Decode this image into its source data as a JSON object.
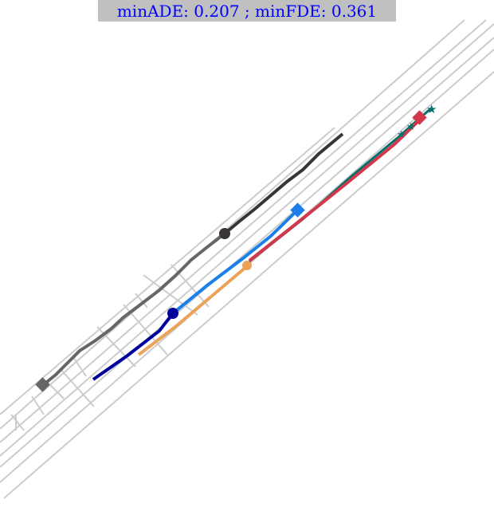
{
  "title": {
    "label_ade": "minADE",
    "value_ade": "0.207",
    "label_fde": "minFDE",
    "value_fde": "0.361"
  },
  "colors": {
    "lane": "#cccccc",
    "title_text": "#0000ff",
    "title_bg": "#c0c0c0",
    "agent_history": "#666666",
    "agent_future": "#3a3535",
    "target_history": "#00009b",
    "target_future": "#1a7fe8",
    "other_history": "#eba357",
    "prediction": "#d2374b",
    "ground_truth": "#00706a"
  },
  "legend_icons": [
    "square-marker-icon",
    "circle-marker-icon",
    "star-marker-icon"
  ]
}
